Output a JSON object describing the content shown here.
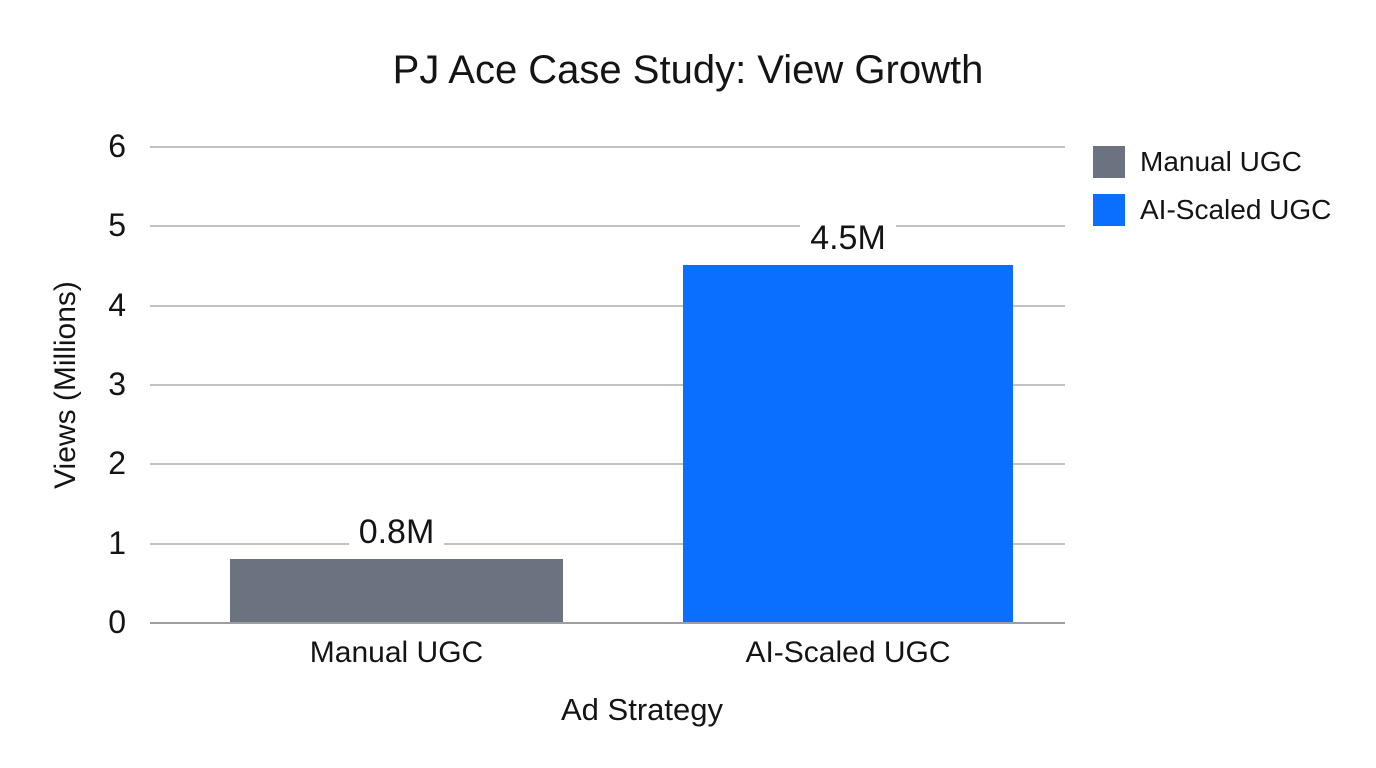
{
  "page": {
    "background": "#ffffff",
    "text_color": "#141414",
    "gridline_color": "#c2c2c2",
    "axis_line_color": "#9e9e9e"
  },
  "chart_data": {
    "type": "bar",
    "title": "PJ Ace Case Study: View Growth",
    "xlabel": "Ad Strategy",
    "ylabel": "Views (Millions)",
    "categories": [
      "Manual UGC",
      "AI-Scaled UGC"
    ],
    "values": [
      0.8,
      4.5
    ],
    "value_labels": [
      "0.8M",
      "4.5M"
    ],
    "bar_colors": [
      "#6b7280",
      "#0a6eff"
    ],
    "ylim": [
      0,
      6
    ],
    "yticks": [
      0,
      1,
      2,
      3,
      4,
      5,
      6
    ],
    "grid": true,
    "legend_position": "top-right",
    "legend": [
      {
        "label": "Manual UGC",
        "color": "#6b7280"
      },
      {
        "label": "AI-Scaled UGC",
        "color": "#0a6eff"
      }
    ]
  }
}
